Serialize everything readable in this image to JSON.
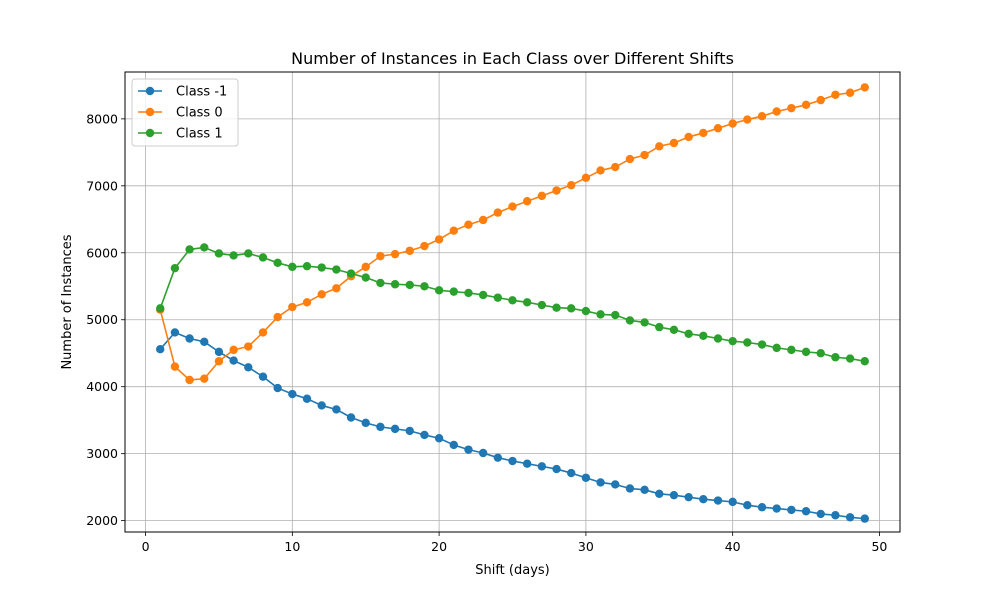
{
  "chart_data": {
    "type": "line",
    "title": "Number of Instances in Each Class over Different Shifts",
    "xlabel": "Shift (days)",
    "ylabel": "Number of Instances",
    "xlim": [
      -1.4,
      51.4
    ],
    "ylim": [
      1830,
      8700
    ],
    "xticks": [
      0,
      10,
      20,
      30,
      40,
      50
    ],
    "yticks": [
      2000,
      3000,
      4000,
      5000,
      6000,
      7000,
      8000
    ],
    "grid": true,
    "legend": "top-left",
    "marker": "circle",
    "x": [
      1,
      2,
      3,
      4,
      5,
      6,
      7,
      8,
      9,
      10,
      11,
      12,
      13,
      14,
      15,
      16,
      17,
      18,
      19,
      20,
      21,
      22,
      23,
      24,
      25,
      26,
      27,
      28,
      29,
      30,
      31,
      32,
      33,
      34,
      35,
      36,
      37,
      38,
      39,
      40,
      41,
      42,
      43,
      44,
      45,
      46,
      47,
      48,
      49
    ],
    "series": [
      {
        "name": "Class -1",
        "color": "#1f77b4",
        "values": [
          4560,
          4810,
          4720,
          4670,
          4520,
          4390,
          4290,
          4150,
          3980,
          3890,
          3820,
          3720,
          3660,
          3540,
          3460,
          3400,
          3370,
          3340,
          3280,
          3230,
          3130,
          3060,
          3010,
          2940,
          2890,
          2850,
          2810,
          2770,
          2710,
          2640,
          2570,
          2540,
          2480,
          2460,
          2400,
          2380,
          2350,
          2320,
          2300,
          2280,
          2230,
          2200,
          2180,
          2160,
          2140,
          2100,
          2080,
          2050,
          2030
        ]
      },
      {
        "name": "Class 0",
        "color": "#ff7f0e",
        "values": [
          5150,
          4300,
          4100,
          4120,
          4380,
          4550,
          4600,
          4810,
          5040,
          5190,
          5260,
          5380,
          5470,
          5650,
          5790,
          5950,
          5980,
          6030,
          6100,
          6200,
          6330,
          6420,
          6490,
          6600,
          6690,
          6770,
          6850,
          6930,
          7010,
          7120,
          7230,
          7280,
          7400,
          7460,
          7590,
          7640,
          7730,
          7790,
          7860,
          7930,
          7990,
          8040,
          8110,
          8160,
          8210,
          8280,
          8360,
          8390,
          8470
        ]
      },
      {
        "name": "Class 1",
        "color": "#2ca02c",
        "values": [
          5170,
          5770,
          6050,
          6080,
          5990,
          5960,
          5990,
          5930,
          5850,
          5790,
          5800,
          5780,
          5750,
          5690,
          5630,
          5550,
          5530,
          5520,
          5500,
          5440,
          5420,
          5400,
          5370,
          5330,
          5290,
          5260,
          5220,
          5180,
          5170,
          5130,
          5080,
          5070,
          4990,
          4960,
          4890,
          4850,
          4790,
          4760,
          4720,
          4680,
          4660,
          4630,
          4580,
          4550,
          4520,
          4500,
          4440,
          4420,
          4380
        ]
      }
    ]
  }
}
